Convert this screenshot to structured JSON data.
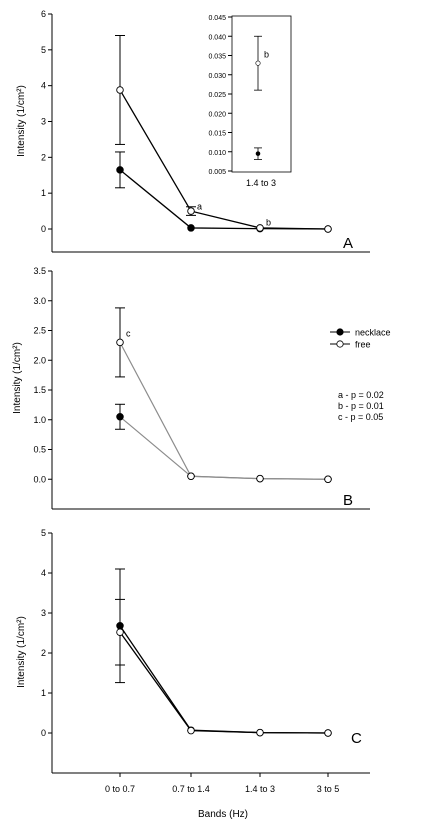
{
  "chart_data": [
    {
      "panel": "A",
      "type": "line",
      "categories": [
        "0 to 0.7",
        "0.7 to 1.4",
        "1.4 to 3",
        "3 to 5"
      ],
      "ylabel": "Intensity (1/cm²)",
      "ylim": [
        0,
        6
      ],
      "yticks": [
        "0",
        "1",
        "2",
        "3",
        "4",
        "5",
        "6"
      ],
      "grid": false,
      "series": [
        {
          "name": "necklace",
          "marker": "filled",
          "values": [
            1.65,
            0.03,
            0.01,
            0.0
          ],
          "err": [
            0.5,
            0.0,
            0.0,
            0.0
          ]
        },
        {
          "name": "free",
          "marker": "open",
          "values": [
            3.88,
            0.5,
            0.03,
            0.0
          ],
          "err": [
            1.52,
            0.12,
            0.0,
            0.0
          ]
        }
      ],
      "annotations": [
        {
          "text": "a",
          "category": "0.7 to 1.4",
          "y": 0.55
        },
        {
          "text": "b",
          "category": "1.4 to 3",
          "y": 0.1
        }
      ],
      "inset": {
        "category": "1.4 to 3",
        "ylim": [
          0.005,
          0.045
        ],
        "yticks": [
          "0.005",
          "0.010",
          "0.015",
          "0.020",
          "0.025",
          "0.030",
          "0.035",
          "0.040",
          "0.045"
        ],
        "series": [
          {
            "name": "necklace",
            "marker": "filled",
            "value": 0.0095,
            "err": 0.0015
          },
          {
            "name": "free",
            "marker": "open",
            "value": 0.033,
            "err": 0.007
          }
        ],
        "annotations": [
          {
            "text": "b",
            "y": 0.0345
          }
        ]
      }
    },
    {
      "panel": "B",
      "type": "line",
      "categories": [
        "0 to 0.7",
        "0.7 to 1.4",
        "1.4 to 3",
        "3 to 5"
      ],
      "ylabel": "Intensity (1/cm²)",
      "ylim": [
        -0.5,
        3.5
      ],
      "yticks": [
        "0.0",
        "0.5",
        "1.0",
        "1.5",
        "2.0",
        "2.5",
        "3.0",
        "3.5"
      ],
      "grid": false,
      "series": [
        {
          "name": "necklace",
          "marker": "filled",
          "values": [
            1.05,
            0.05,
            0.01,
            0.0
          ],
          "err": [
            0.21,
            0.0,
            0.0,
            0.0
          ]
        },
        {
          "name": "free",
          "marker": "open",
          "values": [
            2.3,
            0.05,
            0.01,
            0.0
          ],
          "err": [
            0.58,
            0.0,
            0.0,
            0.0
          ]
        }
      ],
      "annotations": [
        {
          "text": "c",
          "category": "0 to 0.7",
          "y": 2.4
        }
      ],
      "legend": {
        "placement": "right",
        "entries": [
          {
            "label": "necklace",
            "marker": "filled"
          },
          {
            "label": "free",
            "marker": "open"
          }
        ]
      },
      "notes": [
        "a - p = 0.02",
        "b - p = 0.01",
        "c - p = 0.05"
      ]
    },
    {
      "panel": "C",
      "type": "line",
      "categories": [
        "0 to 0.7",
        "0.7 to 1.4",
        "1.4 to 3",
        "3 to 5"
      ],
      "xlabel": "Bands (Hz)",
      "ylabel": "Intensity (1/cm²)",
      "ylim": [
        -1,
        5
      ],
      "yticks": [
        "0",
        "1",
        "2",
        "3",
        "4",
        "5"
      ],
      "grid": false,
      "series": [
        {
          "name": "necklace",
          "marker": "filled",
          "values": [
            2.68,
            0.07,
            0.01,
            0.0
          ],
          "err": [
            1.42,
            0.0,
            0.0,
            0.0
          ]
        },
        {
          "name": "free",
          "marker": "open",
          "values": [
            2.52,
            0.06,
            0.01,
            0.0
          ],
          "err": [
            0.82,
            0.0,
            0.0,
            0.0
          ]
        }
      ]
    }
  ]
}
